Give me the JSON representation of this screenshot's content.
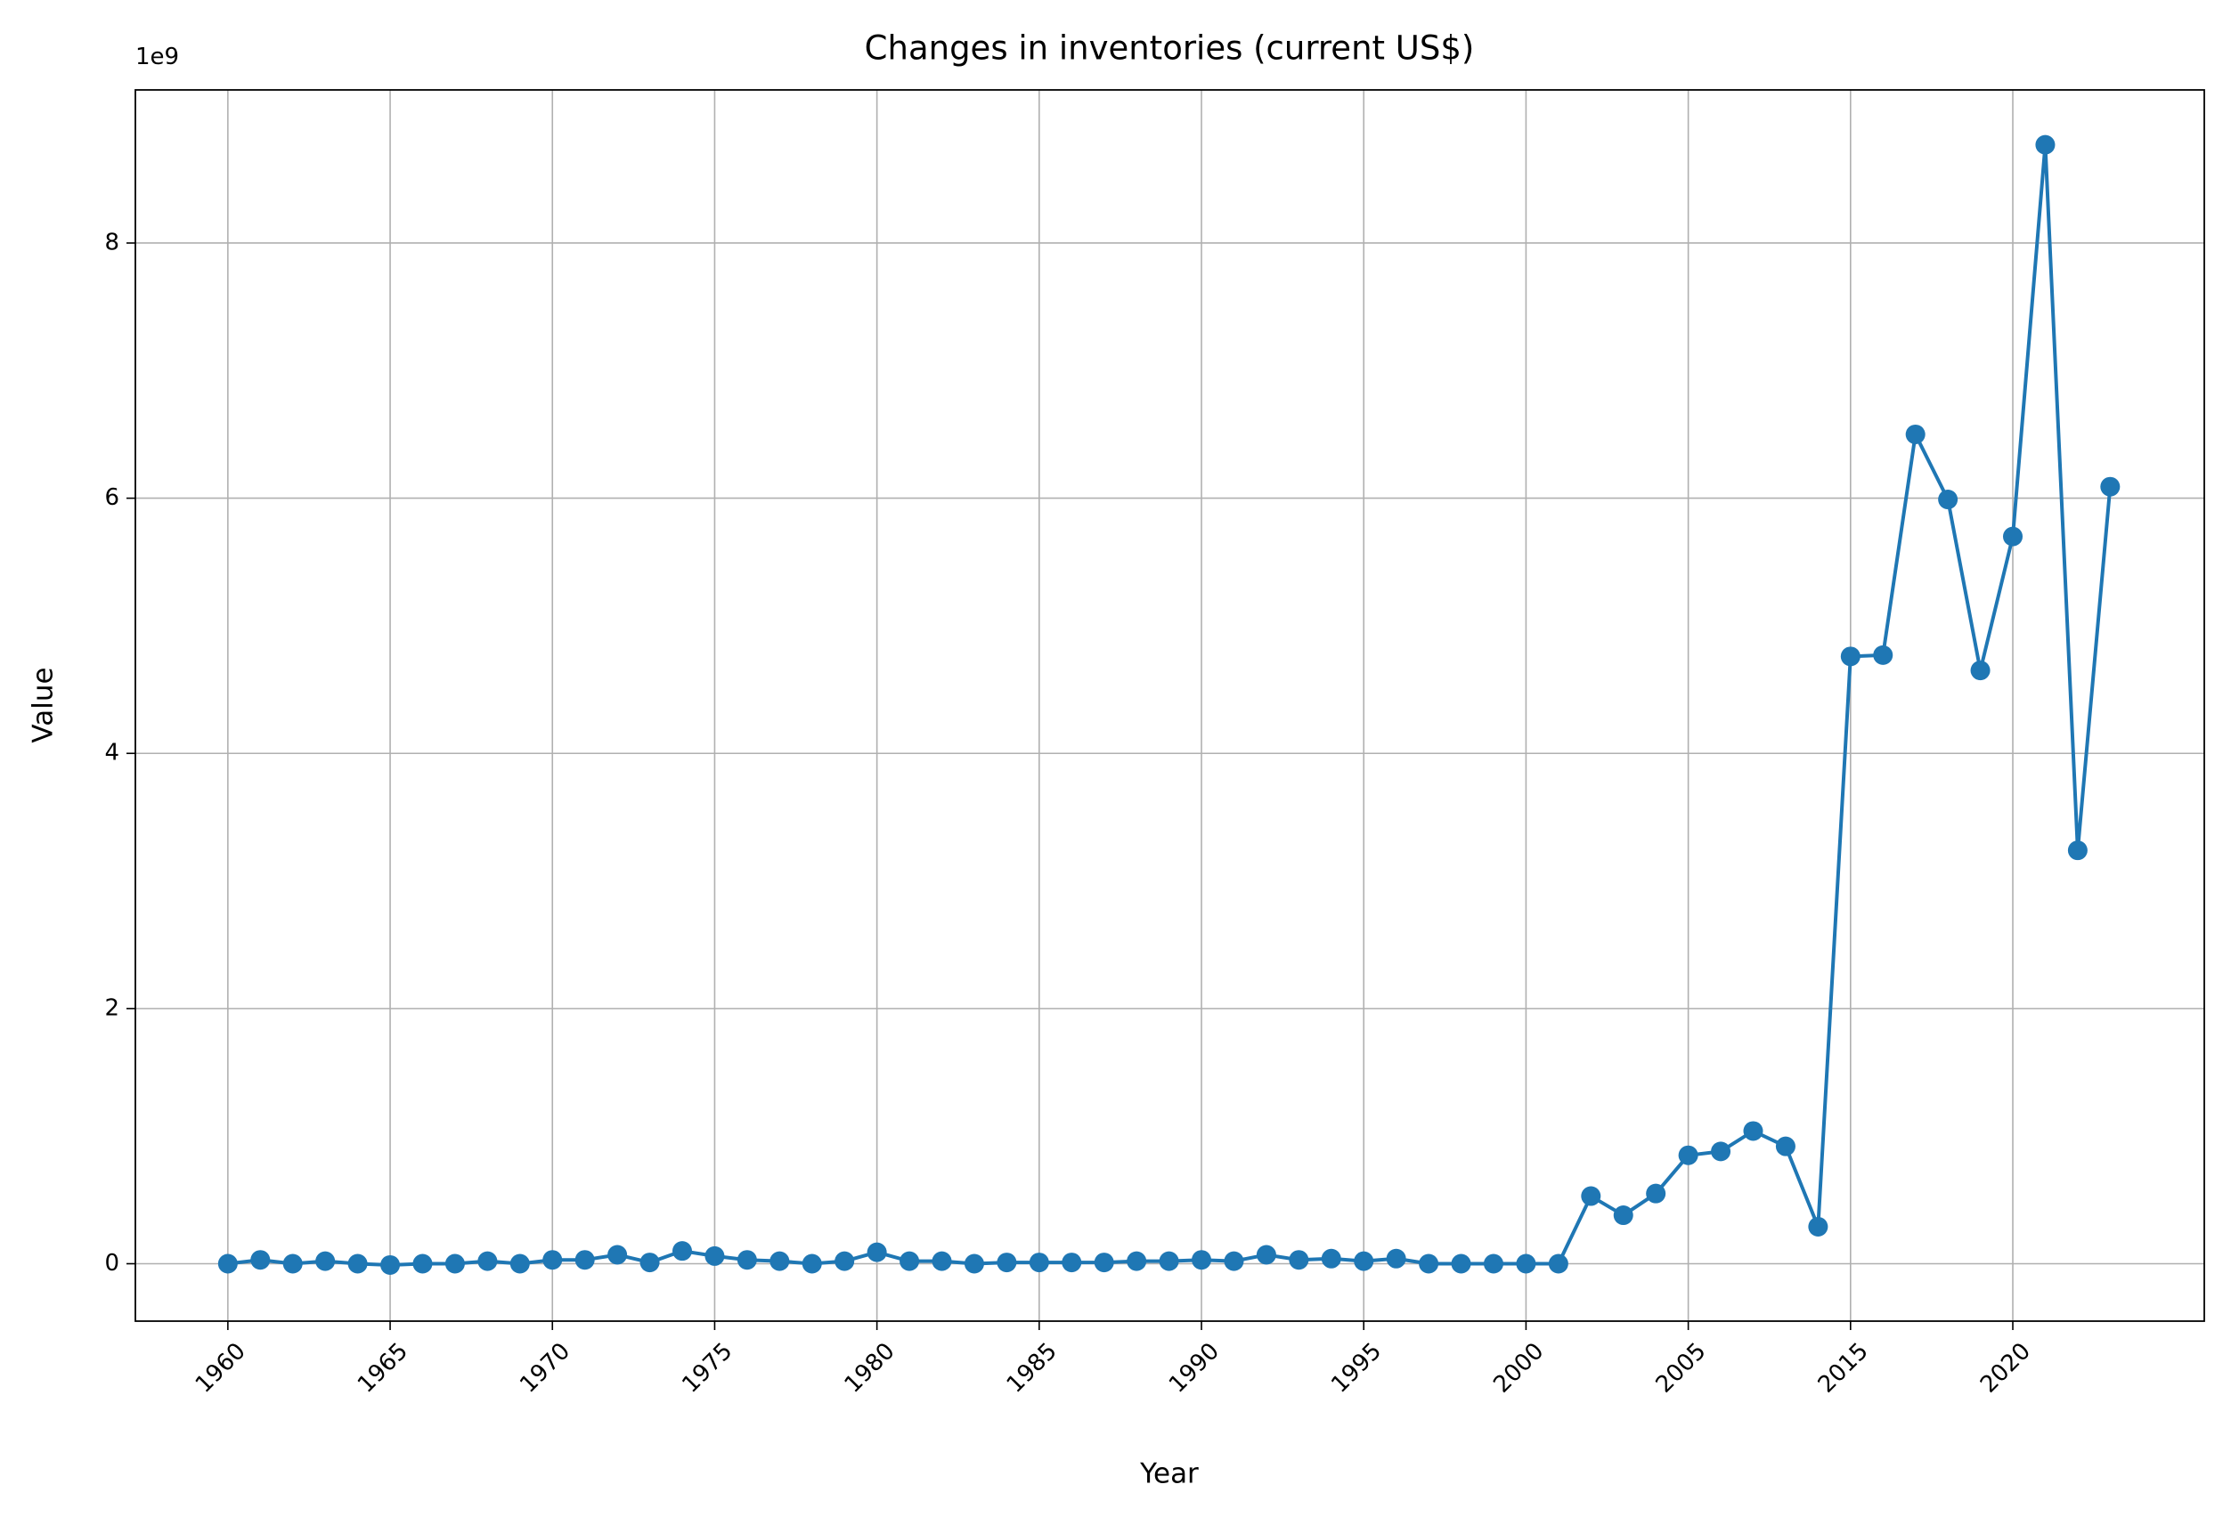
{
  "chart_data": {
    "type": "line",
    "title": "Changes in inventories (current US$)",
    "x_label": "Year",
    "y_label": "Value",
    "y_offset_label": "1e9",
    "categories": [
      "1960",
      null,
      null,
      null,
      null,
      "1965",
      null,
      null,
      null,
      null,
      "1970",
      null,
      null,
      null,
      null,
      "1975",
      null,
      null,
      null,
      null,
      "1980",
      null,
      null,
      null,
      null,
      "1985",
      null,
      null,
      null,
      null,
      "1990",
      null,
      null,
      null,
      null,
      "1995",
      null,
      null,
      null,
      null,
      "2000",
      null,
      null,
      null,
      null,
      "2005",
      null,
      null,
      null,
      null,
      "2015",
      null,
      null,
      null,
      null,
      "2020",
      null,
      null,
      null
    ],
    "series": [
      {
        "color": "#1f77b4",
        "values": [
          0.0,
          0.03,
          0.0,
          0.02,
          0.0,
          -0.01,
          0.0,
          0.0,
          0.02,
          0.0,
          0.03,
          0.03,
          0.07,
          0.01,
          0.1,
          0.06,
          0.03,
          0.02,
          0.0,
          0.02,
          0.09,
          0.02,
          0.02,
          0.0,
          0.01,
          0.01,
          0.01,
          0.01,
          0.02,
          0.02,
          0.03,
          0.02,
          0.07,
          0.03,
          0.04,
          0.02,
          0.04,
          0.0,
          0.0,
          0.0,
          0.0,
          0.0,
          0.53,
          0.38,
          0.55,
          0.85,
          0.88,
          1.04,
          0.92,
          0.29,
          4.76,
          4.77,
          6.5,
          5.99,
          4.65,
          5.7,
          8.77,
          3.24,
          6.09
        ]
      }
    ],
    "ylim": [
      -0.45,
      9.2
    ],
    "yticks": [
      0,
      2,
      4,
      6,
      8
    ],
    "grid": true
  }
}
